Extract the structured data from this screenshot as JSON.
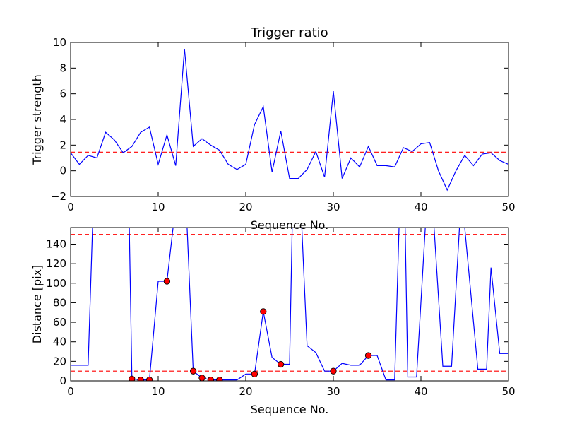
{
  "chart_data": [
    {
      "type": "line",
      "title": "Trigger ratio",
      "xlabel": "Sequence No.",
      "ylabel": "Trigger strength",
      "xlim": [
        0,
        50
      ],
      "ylim": [
        -2,
        10
      ],
      "xticks": [
        0,
        10,
        20,
        30,
        40,
        50
      ],
      "yticks": [
        -2,
        0,
        2,
        4,
        6,
        8,
        10
      ],
      "grid": false,
      "series": [
        {
          "color": "#0000ff",
          "style": "solid",
          "x": [
            0,
            1,
            2,
            3,
            4,
            5,
            6,
            7,
            8,
            9,
            10,
            11,
            12,
            13,
            14,
            15,
            16,
            17,
            18,
            19,
            20,
            21,
            22,
            23,
            24,
            25,
            26,
            27,
            28,
            29,
            30,
            31,
            32,
            33,
            34,
            35,
            36,
            37,
            38,
            39,
            40,
            41,
            42,
            43,
            44,
            45,
            46,
            47,
            48,
            49,
            50
          ],
          "y": [
            1.4,
            0.5,
            1.2,
            1.0,
            3.0,
            2.4,
            1.4,
            1.9,
            3.0,
            3.4,
            0.5,
            2.8,
            0.4,
            9.5,
            1.9,
            2.5,
            2.0,
            1.6,
            0.5,
            0.1,
            0.5,
            3.6,
            5.0,
            -0.1,
            3.1,
            -0.6,
            -0.6,
            0.1,
            1.5,
            -0.5,
            6.2,
            -0.6,
            1.0,
            0.3,
            1.9,
            0.4,
            0.4,
            0.3,
            1.8,
            1.5,
            2.1,
            2.2,
            0.0,
            -1.5,
            0.0,
            1.2,
            0.4,
            1.3,
            1.4,
            0.8,
            0.5
          ]
        }
      ],
      "reference_lines": [
        {
          "orientation": "horizontal",
          "y": 1.45,
          "color": "#ff0000",
          "style": "dashed"
        }
      ]
    },
    {
      "type": "line",
      "xlabel": "Sequence No.",
      "ylabel": "Distance [pix]",
      "xlim": [
        0,
        50
      ],
      "ylim": [
        0,
        157
      ],
      "xticks": [
        0,
        10,
        20,
        30,
        40,
        50
      ],
      "yticks": [
        0,
        20,
        40,
        60,
        80,
        100,
        120,
        140
      ],
      "grid": false,
      "series": [
        {
          "color": "#0000ff",
          "style": "solid",
          "x": [
            0,
            1,
            2,
            2.5,
            6.7,
            7,
            8,
            9,
            10,
            11,
            11.7,
            13.3,
            14,
            15,
            16,
            17,
            18,
            19,
            20,
            21,
            22,
            23,
            24,
            25,
            25.3,
            26.4,
            27,
            28,
            29,
            30,
            31,
            32,
            33,
            34,
            35,
            36,
            37,
            37.5,
            38.2,
            38.5,
            39.5,
            40.5,
            41.5,
            42.5,
            43.5,
            44.4,
            45,
            46.5,
            47.5,
            48,
            49,
            50
          ],
          "y": [
            16,
            16,
            16,
            157,
            157,
            2,
            1,
            1,
            102,
            102,
            157,
            157,
            10,
            3,
            1,
            1,
            1,
            1,
            7,
            7,
            71,
            24,
            17,
            17,
            157,
            157,
            36,
            29,
            10,
            10,
            18,
            16,
            16,
            26,
            26,
            1,
            1,
            157,
            157,
            4,
            4,
            157,
            157,
            15,
            15,
            157,
            157,
            12,
            12,
            116,
            28,
            28
          ]
        },
        {
          "mode": "markers",
          "marker": "circle",
          "color": "#ff0000",
          "x": [
            7,
            8,
            9,
            11,
            14,
            15,
            16,
            17,
            21,
            22,
            24,
            30,
            34
          ],
          "y": [
            2,
            1,
            1,
            102,
            10,
            3,
            1,
            1,
            7,
            71,
            17,
            10,
            26
          ]
        }
      ],
      "reference_lines": [
        {
          "orientation": "horizontal",
          "y": 150,
          "color": "#ff0000",
          "style": "dashed"
        },
        {
          "orientation": "horizontal",
          "y": 10,
          "color": "#ff0000",
          "style": "dashed"
        }
      ]
    }
  ]
}
